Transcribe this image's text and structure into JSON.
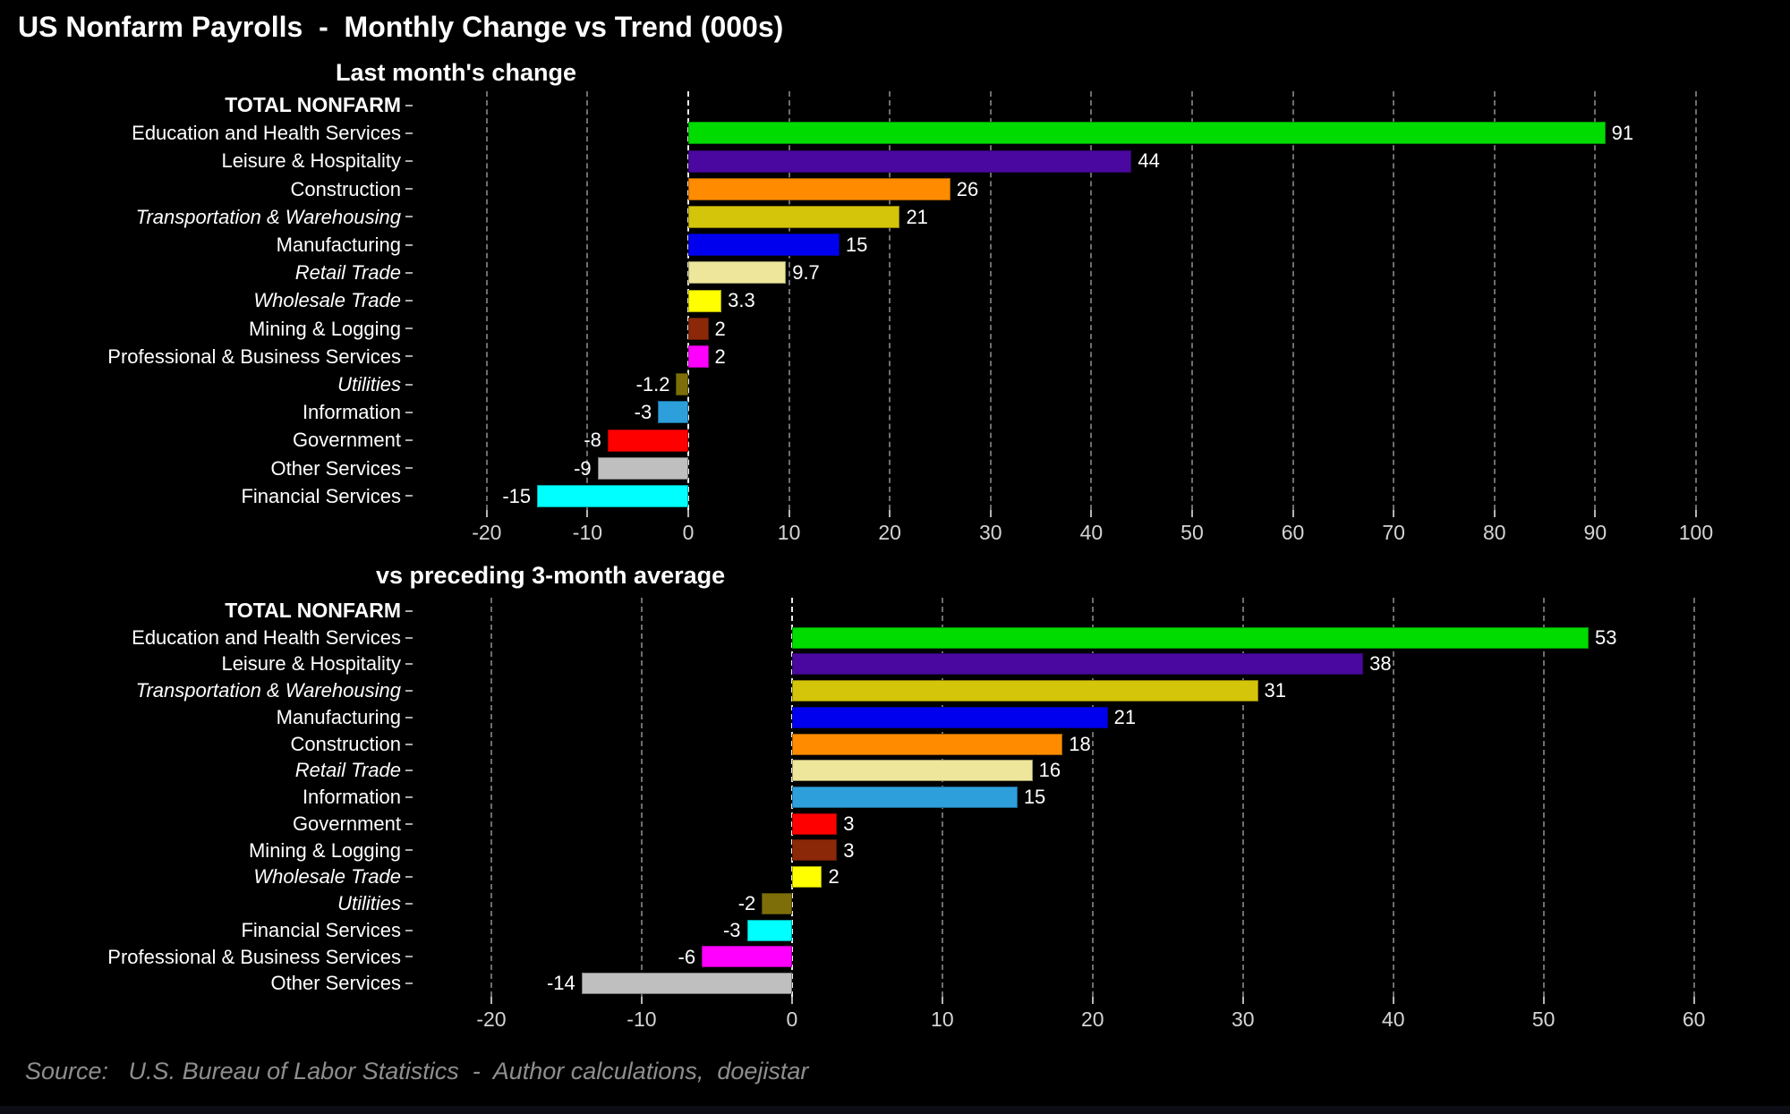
{
  "title": "US Nonfarm Payrolls  -  Monthly Change vs Trend (000s)",
  "source": "Source:   U.S. Bureau of Labor Statistics  -  Author calculations,  doejistar",
  "chart_data": [
    {
      "type": "bar",
      "orientation": "horizontal",
      "title": "Last month's change",
      "xlim": [
        -27,
        108
      ],
      "xticks": [
        -20,
        -10,
        0,
        10,
        20,
        30,
        40,
        50,
        60,
        70,
        80,
        90,
        100
      ],
      "grid": "vertical-dashed",
      "rows": [
        {
          "label": "TOTAL NONFARM",
          "value": null,
          "color": null,
          "style": "bold"
        },
        {
          "label": "Education and Health Services",
          "value": 91,
          "color": "#00dc00"
        },
        {
          "label": "Leisure & Hospitality",
          "value": 44,
          "color": "#4b08a0"
        },
        {
          "label": "Construction",
          "value": 26,
          "color": "#ff8c00"
        },
        {
          "label": "Transportation & Warehousing",
          "value": 21,
          "color": "#d4c40a",
          "style": "italic"
        },
        {
          "label": "Manufacturing",
          "value": 15,
          "color": "#0000ee"
        },
        {
          "label": "Retail Trade",
          "value": 9.7,
          "color": "#ede69b",
          "style": "italic"
        },
        {
          "label": "Wholesale Trade",
          "value": 3.3,
          "color": "#ffff00",
          "style": "italic"
        },
        {
          "label": "Mining & Logging",
          "value": 2,
          "color": "#8b2808"
        },
        {
          "label": "Professional & Business Services",
          "value": 2,
          "color": "#ff00ff"
        },
        {
          "label": "Utilities",
          "value": -1.2,
          "color": "#7d6e0a",
          "style": "italic"
        },
        {
          "label": "Information",
          "value": -3,
          "color": "#2da0dc"
        },
        {
          "label": "Government",
          "value": -8,
          "color": "#ff0000"
        },
        {
          "label": "Other Services",
          "value": -9,
          "color": "#bfbfbf"
        },
        {
          "label": "Financial Services",
          "value": -15,
          "color": "#00ffff"
        }
      ]
    },
    {
      "type": "bar",
      "orientation": "horizontal",
      "title": "vs preceding 3-month average",
      "xlim": [
        -25,
        65.5
      ],
      "xticks": [
        -20,
        -10,
        0,
        10,
        20,
        30,
        40,
        50,
        60
      ],
      "grid": "vertical-dashed",
      "rows": [
        {
          "label": "TOTAL NONFARM",
          "value": null,
          "color": null,
          "style": "bold"
        },
        {
          "label": "Education and Health Services",
          "value": 53,
          "color": "#00dc00"
        },
        {
          "label": "Leisure & Hospitality",
          "value": 38,
          "color": "#4b08a0"
        },
        {
          "label": "Transportation & Warehousing",
          "value": 31,
          "color": "#d4c40a",
          "style": "italic"
        },
        {
          "label": "Manufacturing",
          "value": 21,
          "color": "#0000ee"
        },
        {
          "label": "Construction",
          "value": 18,
          "color": "#ff8c00"
        },
        {
          "label": "Retail Trade",
          "value": 16,
          "color": "#ede69b",
          "style": "italic"
        },
        {
          "label": "Information",
          "value": 15,
          "color": "#2da0dc"
        },
        {
          "label": "Government",
          "value": 3,
          "color": "#ff0000"
        },
        {
          "label": "Mining & Logging",
          "value": 3,
          "color": "#8b2808"
        },
        {
          "label": "Wholesale Trade",
          "value": 2,
          "color": "#ffff00",
          "style": "italic"
        },
        {
          "label": "Utilities",
          "value": -2,
          "color": "#7d6e0a",
          "style": "italic"
        },
        {
          "label": "Financial Services",
          "value": -3,
          "color": "#00ffff"
        },
        {
          "label": "Professional & Business Services",
          "value": -6,
          "color": "#ff00ff"
        },
        {
          "label": "Other Services",
          "value": -14,
          "color": "#bfbfbf"
        }
      ]
    }
  ]
}
